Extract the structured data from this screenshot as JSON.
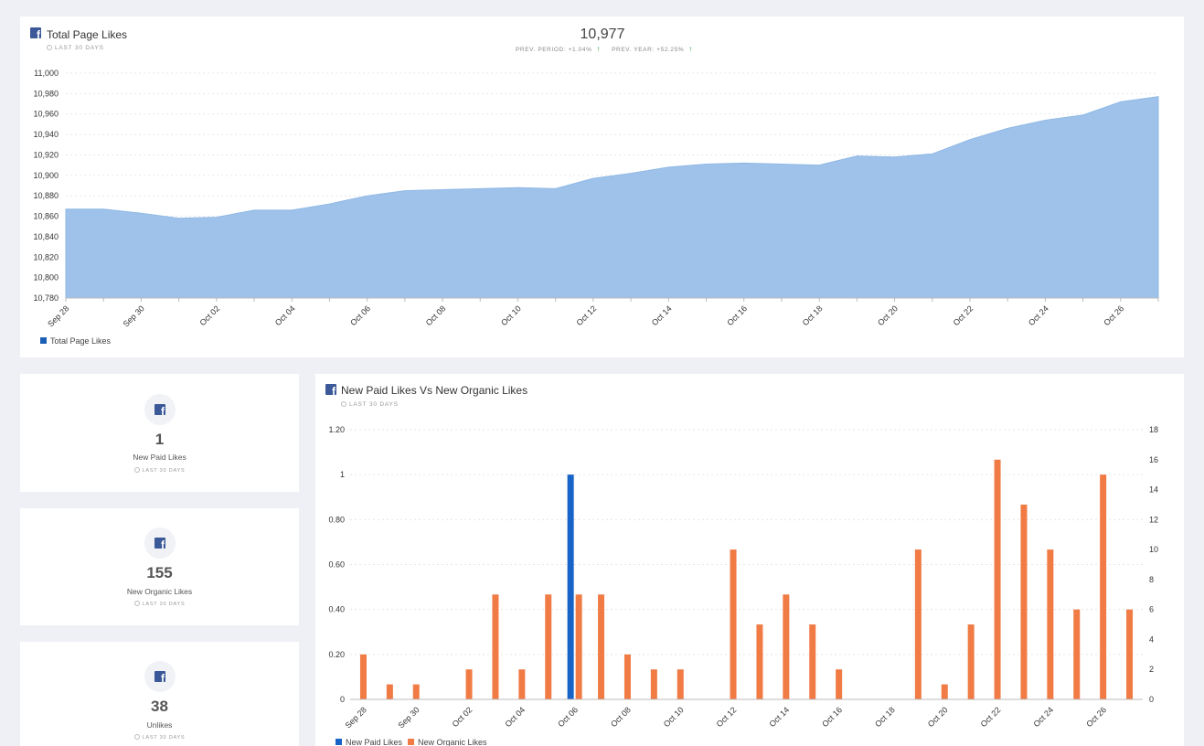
{
  "total_card": {
    "title": "Total Page Likes",
    "period": "LAST 30 DAYS",
    "value": "10,977",
    "prev_period": "PREV. PERIOD: +1.04%",
    "prev_year": "PREV. YEAR: +52.25%",
    "legend": "Total Page Likes",
    "color": "#9ec2ea",
    "legend_color": "#1a5fb4"
  },
  "stats": [
    {
      "value": "1",
      "label": "New Paid Likes",
      "period": "LAST 30 DAYS",
      "icon": "facebook-icon"
    },
    {
      "value": "155",
      "label": "New Organic Likes",
      "period": "LAST 30 DAYS",
      "icon": "facebook-icon"
    },
    {
      "value": "38",
      "label": "Unlikes",
      "period": "LAST 30 DAYS",
      "icon": "facebook-icon"
    }
  ],
  "paid_card": {
    "title": "New Paid Likes Vs New Organic Likes",
    "period": "LAST 30 DAYS",
    "legend_paid": "New Paid Likes",
    "legend_organic": "New Organic Likes",
    "paid_color": "#1763c7",
    "organic_color": "#f07b45"
  },
  "chart_data": [
    {
      "type": "area",
      "title": "Total Page Likes",
      "x": [
        "Sep 28",
        "Sep 29",
        "Sep 30",
        "Oct 01",
        "Oct 02",
        "Oct 03",
        "Oct 04",
        "Oct 05",
        "Oct 06",
        "Oct 07",
        "Oct 08",
        "Oct 09",
        "Oct 10",
        "Oct 11",
        "Oct 12",
        "Oct 13",
        "Oct 14",
        "Oct 15",
        "Oct 16",
        "Oct 17",
        "Oct 18",
        "Oct 19",
        "Oct 20",
        "Oct 21",
        "Oct 22",
        "Oct 23",
        "Oct 24",
        "Oct 25",
        "Oct 26",
        "Oct 27"
      ],
      "x_tick_labels": [
        "Sep 28",
        "Sep 30",
        "Oct 02",
        "Oct 04",
        "Oct 06",
        "Oct 08",
        "Oct 10",
        "Oct 12",
        "Oct 14",
        "Oct 16",
        "Oct 18",
        "Oct 20",
        "Oct 22",
        "Oct 24",
        "Oct 26"
      ],
      "series": [
        {
          "name": "Total Page Likes",
          "values": [
            10867,
            10867,
            10863,
            10858,
            10859,
            10866,
            10866,
            10872,
            10880,
            10885,
            10886,
            10887,
            10888,
            10887,
            10897,
            10902,
            10908,
            10911,
            10912,
            10911,
            10910,
            10919,
            10918,
            10921,
            10935,
            10946,
            10954,
            10959,
            10972,
            10977
          ]
        }
      ],
      "ylim": [
        10780,
        11000
      ],
      "y_ticks": [
        "10,780",
        "10,800",
        "10,820",
        "10,840",
        "10,860",
        "10,880",
        "10,900",
        "10,920",
        "10,940",
        "10,960",
        "10,980",
        "11,000"
      ],
      "legend": "bottom-left",
      "grid": true
    },
    {
      "type": "bar",
      "title": "New Paid Likes Vs New Organic Likes",
      "x": [
        "Sep 28",
        "Sep 29",
        "Sep 30",
        "Oct 01",
        "Oct 02",
        "Oct 03",
        "Oct 04",
        "Oct 05",
        "Oct 06",
        "Oct 07",
        "Oct 08",
        "Oct 09",
        "Oct 10",
        "Oct 11",
        "Oct 12",
        "Oct 13",
        "Oct 14",
        "Oct 15",
        "Oct 16",
        "Oct 17",
        "Oct 18",
        "Oct 19",
        "Oct 20",
        "Oct 21",
        "Oct 22",
        "Oct 23",
        "Oct 24",
        "Oct 25",
        "Oct 26",
        "Oct 27"
      ],
      "x_tick_labels": [
        "Sep 28",
        "Sep 30",
        "Oct 02",
        "Oct 04",
        "Oct 06",
        "Oct 08",
        "Oct 10",
        "Oct 12",
        "Oct 14",
        "Oct 16",
        "Oct 18",
        "Oct 20",
        "Oct 22",
        "Oct 24",
        "Oct 26"
      ],
      "series": [
        {
          "name": "New Paid Likes",
          "axis": "left",
          "values": [
            0,
            0,
            0,
            0,
            0,
            0,
            0,
            0,
            1,
            0,
            0,
            0,
            0,
            0,
            0,
            0,
            0,
            0,
            0,
            0,
            0,
            0,
            0,
            0,
            0,
            0,
            0,
            0,
            0,
            0
          ]
        },
        {
          "name": "New Organic Likes",
          "axis": "right",
          "values": [
            3,
            1,
            1,
            0,
            2,
            7,
            2,
            7,
            7,
            7,
            3,
            2,
            2,
            0,
            10,
            5,
            7,
            5,
            2,
            0,
            0,
            10,
            1,
            5,
            16,
            13,
            10,
            6,
            15,
            6
          ]
        }
      ],
      "y_left_lim": [
        0,
        1.2
      ],
      "y_left_ticks": [
        "0",
        "0.20",
        "0.40",
        "0.60",
        "0.80",
        "1",
        "1.20"
      ],
      "y_right_lim": [
        0,
        18
      ],
      "y_right_ticks": [
        "0",
        "2",
        "4",
        "6",
        "8",
        "10",
        "12",
        "14",
        "16",
        "18"
      ],
      "legend": "bottom-left",
      "grid": true
    }
  ]
}
